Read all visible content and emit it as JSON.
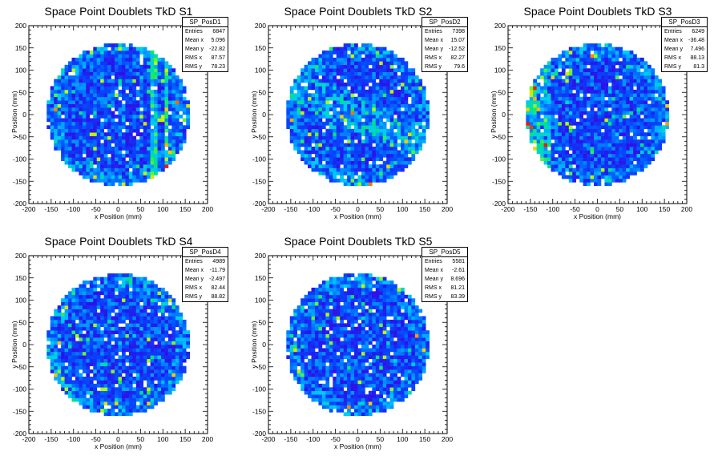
{
  "chart_data": [
    {
      "type": "heatmap",
      "title": "Space Point Doublets TkD S1",
      "xlabel": "x Position (mm)",
      "ylabel": "y Position (mm)",
      "xlim": [
        -200,
        200
      ],
      "ylim": [
        -200,
        200
      ],
      "xticks": [
        "-200",
        "-150",
        "-100",
        "-50",
        "0",
        "50",
        "100",
        "150",
        "200"
      ],
      "yticks": [
        "-200",
        "-150",
        "-100",
        "-50",
        "0",
        "50",
        "100",
        "150",
        "200"
      ],
      "stats": {
        "name": "SP_PosD1",
        "rows": [
          [
            "Entries",
            "6847"
          ],
          [
            "Mean x",
            "5.096"
          ],
          [
            "Mean y",
            "-22.82"
          ],
          [
            "RMS x",
            "87.57"
          ],
          [
            "RMS y",
            "78.23"
          ]
        ]
      }
    },
    {
      "type": "heatmap",
      "title": "Space Point Doublets TkD S2",
      "xlabel": "x Position (mm)",
      "ylabel": "y Position (mm)",
      "xlim": [
        -200,
        200
      ],
      "ylim": [
        -200,
        200
      ],
      "xticks": [
        "-200",
        "-150",
        "-100",
        "-50",
        "0",
        "50",
        "100",
        "150",
        "200"
      ],
      "yticks": [
        "-200",
        "-150",
        "-100",
        "-50",
        "0",
        "50",
        "100",
        "150",
        "200"
      ],
      "stats": {
        "name": "SP_PosD2",
        "rows": [
          [
            "Entries",
            "7398"
          ],
          [
            "Mean x",
            "15.07"
          ],
          [
            "Mean y",
            "-12.52"
          ],
          [
            "RMS x",
            "82.27"
          ],
          [
            "RMS y",
            "79.6"
          ]
        ]
      }
    },
    {
      "type": "heatmap",
      "title": "Space Point Doublets TkD S3",
      "xlabel": "x Position (mm)",
      "ylabel": "y Position (mm)",
      "xlim": [
        -200,
        200
      ],
      "ylim": [
        -200,
        200
      ],
      "xticks": [
        "-200",
        "-150",
        "-100",
        "-50",
        "0",
        "50",
        "100",
        "150",
        "200"
      ],
      "yticks": [
        "-200",
        "-150",
        "-100",
        "-50",
        "0",
        "50",
        "100",
        "150",
        "200"
      ],
      "stats": {
        "name": "SP_PosD3",
        "rows": [
          [
            "Entries",
            "6249"
          ],
          [
            "Mean x",
            "-36.48"
          ],
          [
            "Mean y",
            "7.496"
          ],
          [
            "RMS x",
            "88.13"
          ],
          [
            "RMS y",
            "81.3"
          ]
        ]
      }
    },
    {
      "type": "heatmap",
      "title": "Space Point Doublets TkD S4",
      "xlabel": "x Position (mm)",
      "ylabel": "y Position (mm)",
      "xlim": [
        -200,
        200
      ],
      "ylim": [
        -200,
        200
      ],
      "xticks": [
        "-200",
        "-150",
        "-100",
        "-50",
        "0",
        "50",
        "100",
        "150",
        "200"
      ],
      "yticks": [
        "-200",
        "-150",
        "-100",
        "-50",
        "0",
        "50",
        "100",
        "150",
        "200"
      ],
      "stats": {
        "name": "SP_PosD4",
        "rows": [
          [
            "Entries",
            "4989"
          ],
          [
            "Mean x",
            "-11.79"
          ],
          [
            "Mean y",
            "-2.497"
          ],
          [
            "RMS x",
            "82.44"
          ],
          [
            "RMS y",
            "88.82"
          ]
        ]
      }
    },
    {
      "type": "heatmap",
      "title": "Space Point Doublets TkD S5",
      "xlabel": "x Position (mm)",
      "ylabel": "y Position (mm)",
      "xlim": [
        -200,
        200
      ],
      "ylim": [
        -200,
        200
      ],
      "xticks": [
        "-200",
        "-150",
        "-100",
        "-50",
        "0",
        "50",
        "100",
        "150",
        "200"
      ],
      "yticks": [
        "-200",
        "-150",
        "-100",
        "-50",
        "0",
        "50",
        "100",
        "150",
        "200"
      ],
      "stats": {
        "name": "SP_PosD5",
        "rows": [
          [
            "Entries",
            "5581"
          ],
          [
            "Mean x",
            "-2.61"
          ],
          [
            "Mean y",
            "8.696"
          ],
          [
            "RMS x",
            "81.21"
          ],
          [
            "RMS y",
            "83.39"
          ]
        ]
      }
    }
  ],
  "colors": {
    "low": "#3a1ae0",
    "mid": "#00c8ff",
    "high": "#ff2a00"
  },
  "detector_radius_mm": 160
}
